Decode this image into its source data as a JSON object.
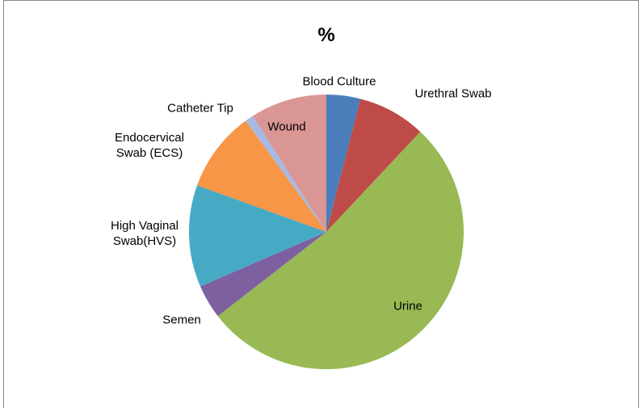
{
  "chart_data": {
    "type": "pie",
    "title": "%",
    "categories": [
      "Blood Culture",
      "Urethral Swab",
      "Urine",
      "Semen",
      "High Vaginal Swab(HVS)",
      "Endocervical Swab (ECS)",
      "Catheter Tip",
      "Wound"
    ],
    "values": [
      4,
      8,
      52.5,
      4,
      12,
      9.5,
      1,
      9
    ],
    "colors": [
      "#4a7ebb",
      "#be4b48",
      "#98b954",
      "#7d60a0",
      "#46aac5",
      "#f79646",
      "#a7b9e3",
      "#d99694"
    ]
  }
}
